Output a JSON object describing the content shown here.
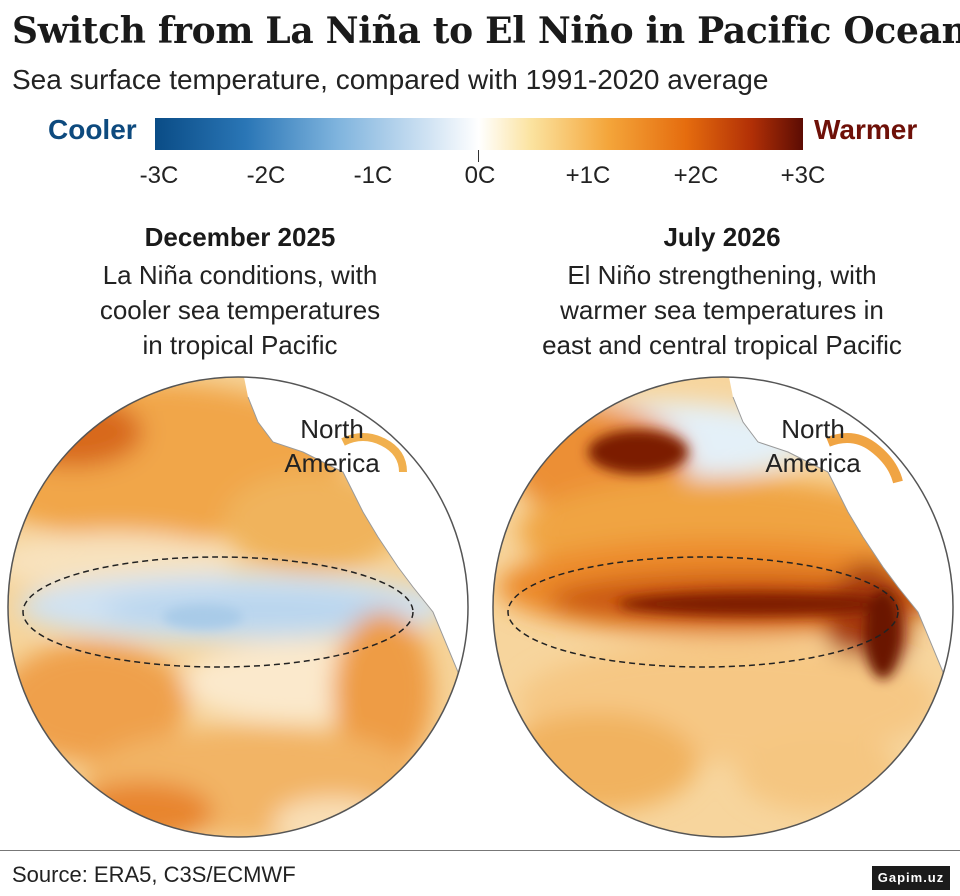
{
  "header": {
    "title": "Switch from La Niña to El Niño in Pacific Ocean",
    "subtitle": "Sea surface temperature, compared with 1991-2020 average"
  },
  "legend": {
    "cool_label": "Cooler",
    "warm_label": "Warmer",
    "cool_color": "#0d4a7e",
    "warm_color": "#6e1008",
    "ticks": [
      "-3C",
      "-2C",
      "-1C",
      "0C",
      "+1C",
      "+2C",
      "+3C"
    ]
  },
  "panels": [
    {
      "title": "December 2025",
      "desc": [
        "La Niña conditions, with",
        "cooler sea temperatures",
        "in tropical Pacific"
      ],
      "map_label": [
        "North",
        "America"
      ]
    },
    {
      "title": "July 2026",
      "desc": [
        "El Niño strengthening, with",
        "warmer sea temperatures in",
        "east and central tropical Pacific"
      ],
      "map_label": [
        "North",
        "America"
      ]
    }
  ],
  "footer": {
    "source": "Source: ERA5, C3S/ECMWF",
    "logo": "Gapim.uz"
  }
}
